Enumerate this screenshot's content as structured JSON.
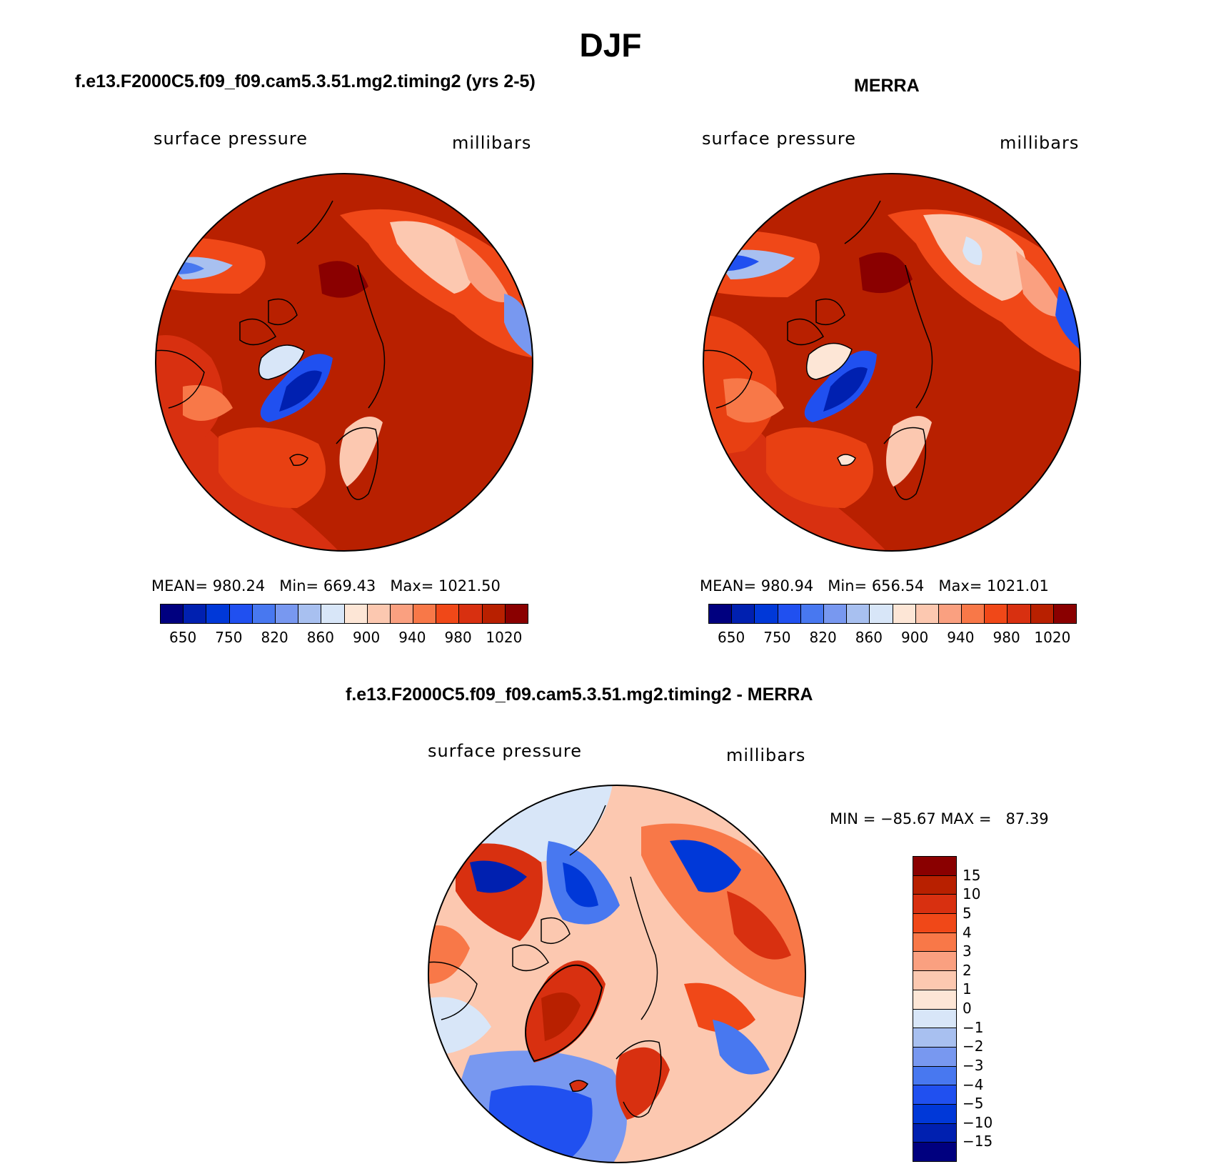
{
  "season_title": "DJF",
  "panel_left": {
    "title": "f.e13.F2000C5.f09_f09.cam5.3.51.mg2.timing2 (yrs 2-5)",
    "variable": "surface pressure",
    "units": "millibars",
    "stats": {
      "mean_label": "MEAN=",
      "mean": "980.24",
      "min_label": "Min=",
      "min": "669.43",
      "max_label": "Max=",
      "max": "1021.50"
    }
  },
  "panel_right": {
    "title": "MERRA",
    "variable": "surface pressure",
    "units": "millibars",
    "stats": {
      "mean_label": "MEAN=",
      "mean": "980.94",
      "min_label": "Min=",
      "min": "656.54",
      "max_label": "Max=",
      "max": "1021.01"
    }
  },
  "panel_diff": {
    "title": "f.e13.F2000C5.f09_f09.cam5.3.51.mg2.timing2 - MERRA",
    "variable": "surface pressure",
    "units": "millibars",
    "minmax_text": "MIN = −85.67 MAX =   87.39"
  },
  "abs_colorbar": {
    "colors": [
      "#00007f",
      "#0020b0",
      "#0038d8",
      "#2050f0",
      "#4878f0",
      "#7898f0",
      "#a8c0f0",
      "#d8e6f8",
      "#fde6d6",
      "#fcc8b0",
      "#faa080",
      "#f87848",
      "#f04818",
      "#d83010",
      "#b82000",
      "#8a0000"
    ],
    "tick_labels": [
      "650",
      "750",
      "820",
      "860",
      "900",
      "940",
      "980",
      "1020"
    ]
  },
  "diff_colorbar": {
    "colors": [
      "#8a0000",
      "#b82000",
      "#d83010",
      "#f04818",
      "#f87848",
      "#faa080",
      "#fcc8b0",
      "#fde6d6",
      "#d8e6f8",
      "#a8c0f0",
      "#7898f0",
      "#4878f0",
      "#2050f0",
      "#0038d8",
      "#0020b0",
      "#00007f"
    ],
    "tick_labels": [
      "15",
      "10",
      "5",
      "4",
      "3",
      "2",
      "1",
      "0",
      "−1",
      "−2",
      "−3",
      "−4",
      "−5",
      "−10",
      "−15"
    ]
  },
  "chart_data": [
    {
      "type": "heatmap",
      "projection": "north polar stereographic",
      "title": "f.e13.F2000C5.f09_f09.cam5.3.51.mg2.timing2 (yrs 2-5)",
      "variable": "surface pressure",
      "units": "millibars",
      "mean": 980.24,
      "min": 669.43,
      "max": 1021.5,
      "levels": [
        650,
        700,
        750,
        800,
        820,
        840,
        860,
        880,
        900,
        920,
        940,
        960,
        980,
        1000,
        1020
      ]
    },
    {
      "type": "heatmap",
      "projection": "north polar stereographic",
      "title": "MERRA",
      "variable": "surface pressure",
      "units": "millibars",
      "mean": 980.94,
      "min": 656.54,
      "max": 1021.01,
      "levels": [
        650,
        700,
        750,
        800,
        820,
        840,
        860,
        880,
        900,
        920,
        940,
        960,
        980,
        1000,
        1020
      ]
    },
    {
      "type": "heatmap",
      "projection": "north polar stereographic",
      "title": "f.e13.F2000C5.f09_f09.cam5.3.51.mg2.timing2 - MERRA",
      "variable": "surface pressure",
      "units": "millibars",
      "min": -85.67,
      "max": 87.39,
      "levels": [
        -15,
        -10,
        -5,
        -4,
        -3,
        -2,
        -1,
        0,
        1,
        2,
        3,
        4,
        5,
        10,
        15
      ]
    }
  ]
}
